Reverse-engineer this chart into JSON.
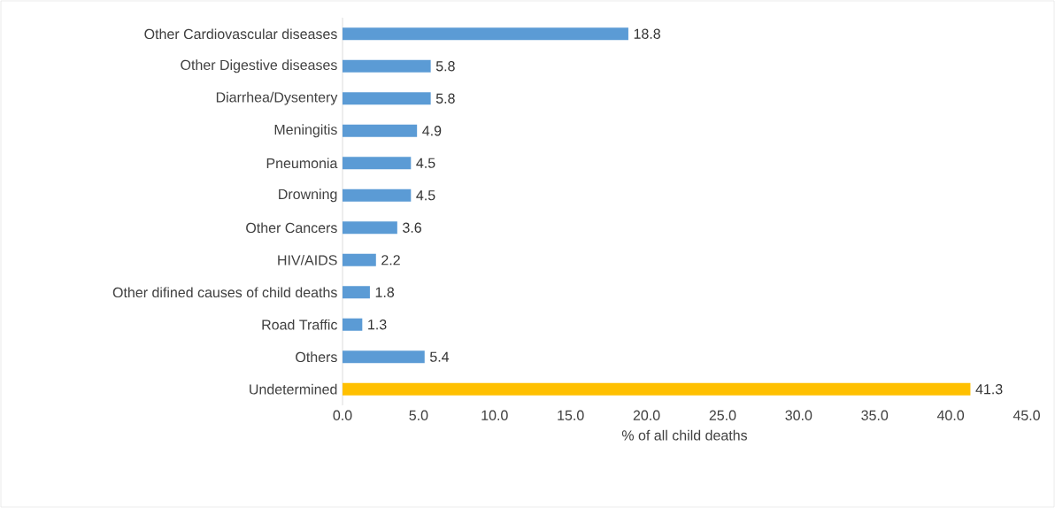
{
  "chart_data": {
    "type": "bar",
    "orientation": "horizontal",
    "xlabel": "% of all child deaths",
    "categories": [
      "Other Cardiovascular diseases",
      "Other Digestive diseases",
      "Diarrhea/Dysentery",
      "Meningitis",
      "Pneumonia",
      "Drowning",
      "Other Cancers",
      "HIV/AIDS",
      "Other difined causes of child deaths",
      "Road Traffic",
      "Others",
      "Undetermined"
    ],
    "values": [
      18.8,
      5.8,
      5.8,
      4.9,
      4.5,
      4.5,
      3.6,
      2.2,
      1.8,
      1.3,
      5.4,
      41.3
    ],
    "colors": [
      "#5b9bd5",
      "#5b9bd5",
      "#5b9bd5",
      "#5b9bd5",
      "#5b9bd5",
      "#5b9bd5",
      "#5b9bd5",
      "#5b9bd5",
      "#5b9bd5",
      "#5b9bd5",
      "#5b9bd5",
      "#ffc000"
    ],
    "xlim": [
      0,
      45
    ],
    "xticks": [
      {
        "value": 0,
        "label": "0.0"
      },
      {
        "value": 5,
        "label": "5.0"
      },
      {
        "value": 10,
        "label": "10.0"
      },
      {
        "value": 15,
        "label": "15.0"
      },
      {
        "value": 20,
        "label": "20.0"
      },
      {
        "value": 25,
        "label": "25.0"
      },
      {
        "value": 30,
        "label": "30.0"
      },
      {
        "value": 35,
        "label": "35.0"
      },
      {
        "value": 40,
        "label": "40.0"
      },
      {
        "value": 45,
        "label": "45.0"
      }
    ],
    "data_labels": true
  }
}
